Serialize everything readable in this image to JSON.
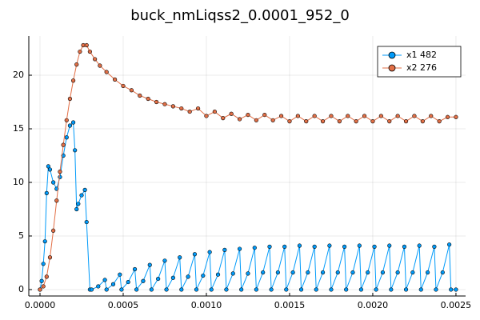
{
  "chart_data": {
    "type": "line",
    "title": "buck_nmLiqss2_0.0001_952_0",
    "xlim": [
      -6.73e-05,
      0.002558
    ],
    "ylim": [
      -0.6,
      23.66
    ],
    "xticks": [
      {
        "value": 0,
        "label": "0.0000"
      },
      {
        "value": 0.0005,
        "label": "0.0005"
      },
      {
        "value": 0.001,
        "label": "0.0010"
      },
      {
        "value": 0.0015,
        "label": "0.0015"
      },
      {
        "value": 0.002,
        "label": "0.0020"
      },
      {
        "value": 0.0025,
        "label": "0.0025"
      }
    ],
    "yticks": [
      0,
      5,
      10,
      15,
      20
    ],
    "grid": true,
    "legend": "top right",
    "series": [
      {
        "name": "x1 482",
        "color": "#009af9",
        "x": [
          0,
          1e-05,
          2e-05,
          3e-05,
          4e-05,
          5e-05,
          6e-05,
          8e-05,
          0.0001,
          0.00012,
          0.00014,
          0.00016,
          0.00018,
          0.0002,
          0.00021,
          0.00022,
          0.00023,
          0.00025,
          0.00027,
          0.00028,
          0.0003,
          0.00031,
          0.00035,
          0.00039,
          0.0004,
          0.00044,
          0.00048,
          0.00049,
          0.00053,
          0.00057,
          0.00058,
          0.00062,
          0.00066,
          0.00067,
          0.00071,
          0.00075,
          0.00076,
          0.0008,
          0.00084,
          0.00085,
          0.00089,
          0.00093,
          0.00094,
          0.00098,
          0.00102,
          0.00103,
          0.00107,
          0.00111,
          0.00112,
          0.00116,
          0.0012,
          0.00121,
          0.00125,
          0.00129,
          0.0013,
          0.00134,
          0.00138,
          0.00139,
          0.00143,
          0.00147,
          0.00148,
          0.00152,
          0.00156,
          0.00157,
          0.00161,
          0.00165,
          0.00166,
          0.0017,
          0.00174,
          0.00175,
          0.00179,
          0.00183,
          0.00184,
          0.00188,
          0.00192,
          0.00193,
          0.00197,
          0.00201,
          0.00202,
          0.00206,
          0.0021,
          0.00211,
          0.00215,
          0.00219,
          0.0022,
          0.00224,
          0.00228,
          0.00229,
          0.00233,
          0.00237,
          0.00238,
          0.00242,
          0.00246,
          0.00247,
          0.0025
        ],
        "values": [
          0,
          0.8,
          2.4,
          4.5,
          9,
          11.5,
          11.2,
          10,
          9.4,
          10.5,
          12.5,
          14.2,
          15.3,
          15.6,
          13,
          7.5,
          8,
          8.8,
          9.3,
          6.3,
          0,
          0,
          0.3,
          0.9,
          0,
          0.5,
          1.4,
          0,
          0.7,
          1.9,
          0,
          0.8,
          2.3,
          0,
          1,
          2.7,
          0,
          1.1,
          3,
          0,
          1.2,
          3.3,
          0,
          1.3,
          3.5,
          0,
          1.4,
          3.7,
          0,
          1.5,
          3.8,
          0,
          1.5,
          3.9,
          0,
          1.6,
          4,
          0,
          1.6,
          4,
          0,
          1.6,
          4.1,
          0,
          1.6,
          4,
          0,
          1.6,
          4.1,
          0,
          1.6,
          4,
          0,
          1.6,
          4.1,
          0,
          1.6,
          4,
          0,
          1.6,
          4.1,
          0,
          1.6,
          4,
          0,
          1.6,
          4.1,
          0,
          1.6,
          4,
          0,
          1.6,
          4.2,
          0,
          0
        ]
      },
      {
        "name": "x2 276",
        "color": "#e26f46",
        "x": [
          0,
          2e-05,
          4e-05,
          6e-05,
          8e-05,
          0.0001,
          0.00012,
          0.00014,
          0.00016,
          0.00018,
          0.0002,
          0.00022,
          0.00024,
          0.00026,
          0.00028,
          0.0003,
          0.00033,
          0.00036,
          0.0004,
          0.00045,
          0.0005,
          0.00055,
          0.0006,
          0.00065,
          0.0007,
          0.00075,
          0.0008,
          0.00085,
          0.0009,
          0.00095,
          0.001,
          0.00105,
          0.0011,
          0.00115,
          0.0012,
          0.00125,
          0.0013,
          0.00135,
          0.0014,
          0.00145,
          0.0015,
          0.00155,
          0.0016,
          0.00165,
          0.0017,
          0.00175,
          0.0018,
          0.00185,
          0.0019,
          0.00195,
          0.002,
          0.00205,
          0.0021,
          0.00215,
          0.0022,
          0.00225,
          0.0023,
          0.00235,
          0.0024,
          0.00245,
          0.0025
        ],
        "values": [
          0,
          0.3,
          1.2,
          3,
          5.5,
          8.3,
          11,
          13.5,
          15.8,
          17.8,
          19.5,
          21,
          22.2,
          22.8,
          22.8,
          22.2,
          21.5,
          20.9,
          20.3,
          19.6,
          19,
          18.6,
          18.1,
          17.8,
          17.5,
          17.3,
          17.1,
          16.9,
          16.6,
          16.9,
          16.2,
          16.6,
          16,
          16.4,
          15.9,
          16.3,
          15.8,
          16.3,
          15.8,
          16.2,
          15.7,
          16.2,
          15.7,
          16.2,
          15.7,
          16.2,
          15.7,
          16.2,
          15.7,
          16.2,
          15.7,
          16.2,
          15.7,
          16.2,
          15.7,
          16.2,
          15.7,
          16.2,
          15.7,
          16.1,
          16.1
        ]
      }
    ]
  }
}
